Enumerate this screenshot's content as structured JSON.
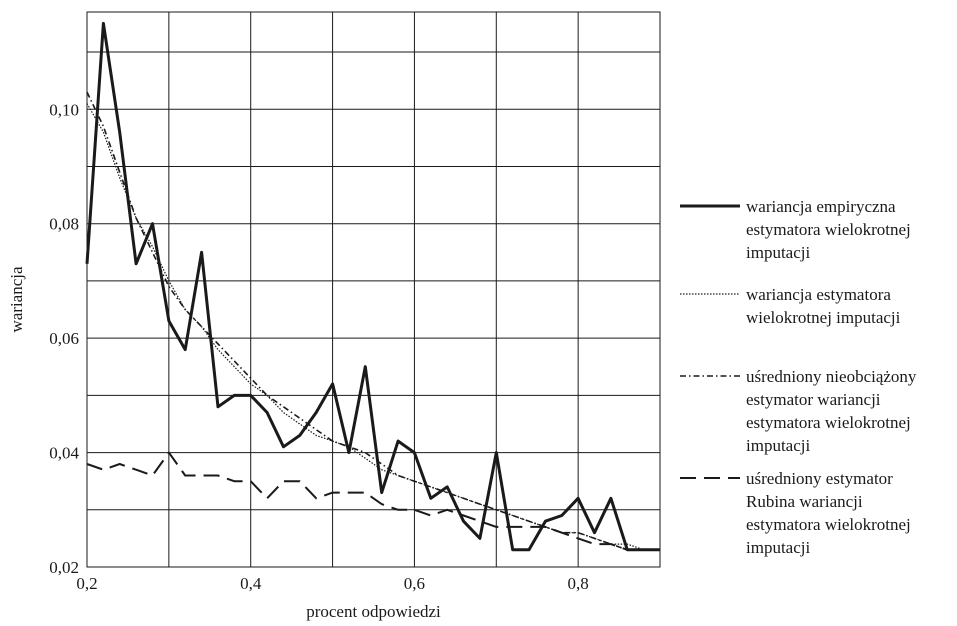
{
  "chart_data": {
    "type": "line",
    "xlabel": "procent odpowiedzi",
    "ylabel": "wariancja",
    "xlim": [
      0.2,
      0.9
    ],
    "ylim": [
      0.02,
      0.117
    ],
    "grid": true,
    "legend_position": "right",
    "x_ticks": [
      {
        "value": 0.2,
        "label": "0,2"
      },
      {
        "value": 0.4,
        "label": "0,4"
      },
      {
        "value": 0.6,
        "label": "0,6"
      },
      {
        "value": 0.8,
        "label": "0,8"
      }
    ],
    "x_grid": [
      0.2,
      0.3,
      0.4,
      0.5,
      0.6,
      0.7,
      0.8,
      0.9
    ],
    "y_ticks": [
      {
        "value": 0.02,
        "label": "0,02"
      },
      {
        "value": 0.04,
        "label": "0,04"
      },
      {
        "value": 0.06,
        "label": "0,06"
      },
      {
        "value": 0.08,
        "label": "0,08"
      },
      {
        "value": 0.1,
        "label": "0,10"
      }
    ],
    "y_grid": [
      0.02,
      0.03,
      0.04,
      0.05,
      0.06,
      0.07,
      0.08,
      0.09,
      0.1,
      0.11
    ],
    "series": [
      {
        "name_lines": [
          "wariancja empiryczna",
          "estymatora wielokrotnej",
          "imputacji"
        ],
        "style": "solid",
        "points": [
          [
            0.2,
            0.073
          ],
          [
            0.22,
            0.115
          ],
          [
            0.24,
            0.096
          ],
          [
            0.26,
            0.073
          ],
          [
            0.28,
            0.08
          ],
          [
            0.3,
            0.063
          ],
          [
            0.32,
            0.058
          ],
          [
            0.34,
            0.075
          ],
          [
            0.36,
            0.048
          ],
          [
            0.38,
            0.05
          ],
          [
            0.4,
            0.05
          ],
          [
            0.42,
            0.047
          ],
          [
            0.44,
            0.041
          ],
          [
            0.46,
            0.043
          ],
          [
            0.48,
            0.047
          ],
          [
            0.5,
            0.052
          ],
          [
            0.52,
            0.04
          ],
          [
            0.54,
            0.055
          ],
          [
            0.56,
            0.033
          ],
          [
            0.58,
            0.042
          ],
          [
            0.6,
            0.04
          ],
          [
            0.62,
            0.032
          ],
          [
            0.64,
            0.034
          ],
          [
            0.66,
            0.028
          ],
          [
            0.68,
            0.025
          ],
          [
            0.7,
            0.04
          ],
          [
            0.72,
            0.023
          ],
          [
            0.74,
            0.023
          ],
          [
            0.76,
            0.028
          ],
          [
            0.78,
            0.029
          ],
          [
            0.8,
            0.032
          ],
          [
            0.82,
            0.026
          ],
          [
            0.84,
            0.032
          ],
          [
            0.86,
            0.023
          ],
          [
            0.88,
            0.023
          ],
          [
            0.9,
            0.023
          ]
        ]
      },
      {
        "name_lines": [
          "wariancja estymatora",
          "wielokrotnej imputacji"
        ],
        "style": "dotted",
        "points": [
          [
            0.2,
            0.101
          ],
          [
            0.22,
            0.096
          ],
          [
            0.24,
            0.088
          ],
          [
            0.26,
            0.081
          ],
          [
            0.28,
            0.076
          ],
          [
            0.3,
            0.07
          ],
          [
            0.32,
            0.065
          ],
          [
            0.34,
            0.062
          ],
          [
            0.36,
            0.058
          ],
          [
            0.38,
            0.055
          ],
          [
            0.4,
            0.052
          ],
          [
            0.42,
            0.05
          ],
          [
            0.44,
            0.047
          ],
          [
            0.46,
            0.045
          ],
          [
            0.48,
            0.043
          ],
          [
            0.5,
            0.042
          ],
          [
            0.52,
            0.041
          ],
          [
            0.54,
            0.039
          ],
          [
            0.56,
            0.037
          ],
          [
            0.58,
            0.036
          ],
          [
            0.6,
            0.035
          ],
          [
            0.62,
            0.034
          ],
          [
            0.64,
            0.033
          ],
          [
            0.66,
            0.032
          ],
          [
            0.68,
            0.031
          ],
          [
            0.7,
            0.03
          ],
          [
            0.72,
            0.029
          ],
          [
            0.74,
            0.028
          ],
          [
            0.76,
            0.027
          ],
          [
            0.78,
            0.026
          ],
          [
            0.8,
            0.026
          ],
          [
            0.82,
            0.025
          ],
          [
            0.84,
            0.024
          ],
          [
            0.86,
            0.024
          ],
          [
            0.88,
            0.023
          ],
          [
            0.9,
            0.023
          ]
        ]
      },
      {
        "name_lines": [
          "uśredniony nieobciążony",
          "estymator wariancji",
          "estymatora wielokrotnej",
          "imputacji"
        ],
        "style": "dashdot",
        "points": [
          [
            0.2,
            0.103
          ],
          [
            0.22,
            0.097
          ],
          [
            0.24,
            0.089
          ],
          [
            0.26,
            0.081
          ],
          [
            0.28,
            0.075
          ],
          [
            0.3,
            0.069
          ],
          [
            0.32,
            0.065
          ],
          [
            0.34,
            0.062
          ],
          [
            0.36,
            0.059
          ],
          [
            0.38,
            0.056
          ],
          [
            0.4,
            0.053
          ],
          [
            0.42,
            0.05
          ],
          [
            0.44,
            0.048
          ],
          [
            0.46,
            0.046
          ],
          [
            0.48,
            0.044
          ],
          [
            0.5,
            0.042
          ],
          [
            0.52,
            0.041
          ],
          [
            0.54,
            0.04
          ],
          [
            0.56,
            0.038
          ],
          [
            0.58,
            0.036
          ],
          [
            0.6,
            0.035
          ],
          [
            0.62,
            0.034
          ],
          [
            0.64,
            0.033
          ],
          [
            0.66,
            0.032
          ],
          [
            0.68,
            0.031
          ],
          [
            0.7,
            0.03
          ],
          [
            0.72,
            0.029
          ],
          [
            0.74,
            0.028
          ],
          [
            0.76,
            0.027
          ],
          [
            0.78,
            0.026
          ],
          [
            0.8,
            0.026
          ],
          [
            0.82,
            0.025
          ],
          [
            0.84,
            0.024
          ],
          [
            0.86,
            0.023
          ],
          [
            0.88,
            0.023
          ],
          [
            0.9,
            0.023
          ]
        ]
      },
      {
        "name_lines": [
          "uśredniony estymator",
          "Rubina wariancji",
          "estymatora wielokrotnej",
          "imputacji"
        ],
        "style": "dashed",
        "points": [
          [
            0.2,
            0.038
          ],
          [
            0.22,
            0.037
          ],
          [
            0.24,
            0.038
          ],
          [
            0.26,
            0.037
          ],
          [
            0.28,
            0.036
          ],
          [
            0.3,
            0.04
          ],
          [
            0.32,
            0.036
          ],
          [
            0.34,
            0.036
          ],
          [
            0.36,
            0.036
          ],
          [
            0.38,
            0.035
          ],
          [
            0.4,
            0.035
          ],
          [
            0.42,
            0.032
          ],
          [
            0.44,
            0.035
          ],
          [
            0.46,
            0.035
          ],
          [
            0.48,
            0.032
          ],
          [
            0.5,
            0.033
          ],
          [
            0.52,
            0.033
          ],
          [
            0.54,
            0.033
          ],
          [
            0.56,
            0.031
          ],
          [
            0.58,
            0.03
          ],
          [
            0.6,
            0.03
          ],
          [
            0.62,
            0.029
          ],
          [
            0.64,
            0.03
          ],
          [
            0.66,
            0.029
          ],
          [
            0.68,
            0.028
          ],
          [
            0.7,
            0.027
          ],
          [
            0.72,
            0.027
          ],
          [
            0.74,
            0.027
          ],
          [
            0.76,
            0.027
          ],
          [
            0.78,
            0.026
          ],
          [
            0.8,
            0.025
          ],
          [
            0.82,
            0.024
          ],
          [
            0.84,
            0.024
          ],
          [
            0.86,
            0.023
          ],
          [
            0.88,
            0.023
          ],
          [
            0.9,
            0.023
          ]
        ]
      }
    ]
  }
}
